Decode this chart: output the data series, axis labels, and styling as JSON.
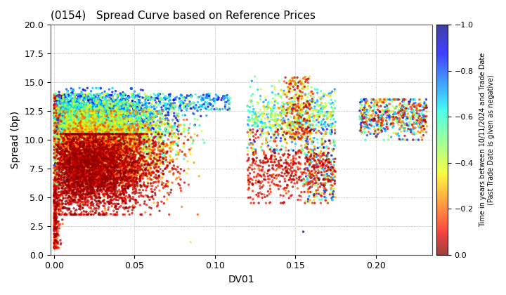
{
  "title": "(0154)   Spread Curve based on Reference Prices",
  "xlabel": "DV01",
  "ylabel": "Spread (bp)",
  "colorbar_label": "Time in years between 10/11/2024 and Trade Date\n(Past Trade Date is given as negative)",
  "xlim": [
    -0.002,
    0.235
  ],
  "ylim": [
    0.0,
    20.0
  ],
  "xticks": [
    0.0,
    0.05,
    0.1,
    0.15,
    0.2
  ],
  "yticks": [
    0.0,
    2.5,
    5.0,
    7.5,
    10.0,
    12.5,
    15.0,
    17.5,
    20.0
  ],
  "cmap": "jet",
  "vmin": -1.0,
  "vmax": 0.0,
  "colorbar_ticks": [
    0.0,
    -0.2,
    -0.4,
    -0.6,
    -0.8,
    -1.0
  ],
  "marker_size": 6,
  "alpha": 0.75,
  "background_color": "#ffffff",
  "grid_color": "#888888",
  "seed": 123
}
